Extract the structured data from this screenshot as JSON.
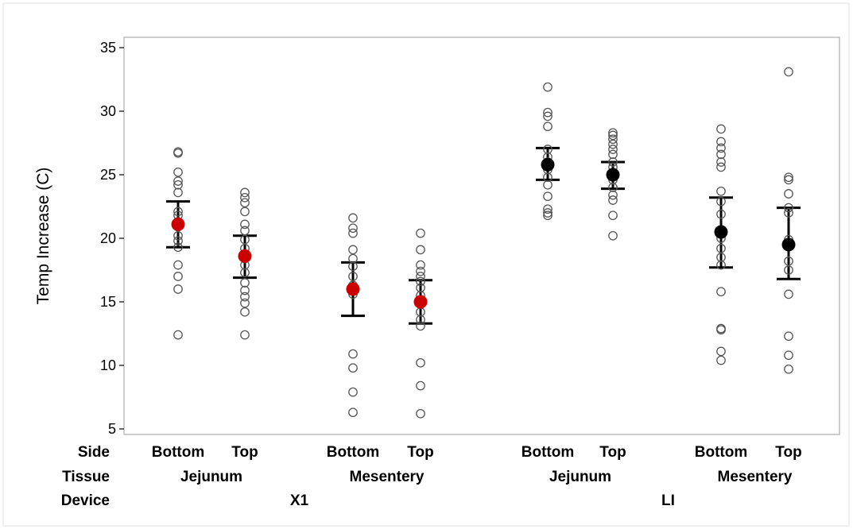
{
  "chart_data": {
    "type": "scatter",
    "ylabel": "Temp Increase (C)",
    "ylim": [
      5,
      35
    ],
    "yticks": [
      5,
      10,
      15,
      20,
      25,
      30,
      35
    ],
    "grid": false,
    "row_titles": {
      "side": "Side",
      "tissue": "Tissue",
      "device": "Device"
    },
    "devices": [
      "X1",
      "LI"
    ],
    "groups": [
      {
        "side": "Bottom",
        "tissue": "Jejunum",
        "device": "X1",
        "mean": 21.1,
        "ci": [
          19.3,
          22.9
        ],
        "mean_color": "#cc0000",
        "points": [
          26.8,
          26.7,
          25.2,
          24.5,
          24.2,
          23.6,
          22.1,
          21.8,
          21.3,
          20.9,
          20.2,
          19.8,
          19.3,
          17.9,
          17.0,
          16.0,
          12.4
        ]
      },
      {
        "side": "Top",
        "tissue": "Jejunum",
        "device": "X1",
        "mean": 18.6,
        "ci": [
          16.9,
          20.2
        ],
        "mean_color": "#cc0000",
        "points": [
          23.6,
          23.2,
          22.8,
          22.1,
          21.1,
          20.6,
          19.9,
          19.2,
          18.4,
          17.9,
          17.3,
          16.5,
          15.9,
          15.4,
          14.9,
          14.2,
          12.4
        ]
      },
      {
        "side": "Bottom",
        "tissue": "Mesentery",
        "device": "X1",
        "mean": 16.0,
        "ci": [
          13.9,
          18.1
        ],
        "mean_color": "#cc0000",
        "points": [
          21.6,
          20.8,
          20.4,
          19.1,
          18.4,
          17.8,
          17.0,
          16.3,
          15.6,
          10.9,
          9.8,
          7.9,
          6.3
        ]
      },
      {
        "side": "Top",
        "tissue": "Mesentery",
        "device": "X1",
        "mean": 15.0,
        "ci": [
          13.3,
          16.7
        ],
        "mean_color": "#cc0000",
        "points": [
          20.4,
          19.1,
          17.9,
          17.4,
          17.0,
          16.6,
          16.1,
          15.5,
          14.8,
          14.2,
          13.6,
          13.1,
          10.2,
          8.4,
          6.2
        ]
      },
      {
        "side": "Bottom",
        "tissue": "Jejunum",
        "device": "LI",
        "mean": 25.8,
        "ci": [
          24.6,
          27.1
        ],
        "mean_color": "#000000",
        "points": [
          31.9,
          29.9,
          29.6,
          28.8,
          27.0,
          26.4,
          26.0,
          25.4,
          24.8,
          24.2,
          23.3,
          22.3,
          22.0,
          21.8
        ]
      },
      {
        "side": "Top",
        "tissue": "Jejunum",
        "device": "LI",
        "mean": 25.0,
        "ci": [
          23.9,
          26.0
        ],
        "mean_color": "#000000",
        "points": [
          28.3,
          28.1,
          27.8,
          27.4,
          27.0,
          26.6,
          26.0,
          25.6,
          25.1,
          24.6,
          24.0,
          23.4,
          23.0,
          21.8,
          20.2
        ]
      },
      {
        "side": "Bottom",
        "tissue": "Mesentery",
        "device": "LI",
        "mean": 20.5,
        "ci": [
          17.7,
          23.2
        ],
        "mean_color": "#000000",
        "points": [
          28.6,
          27.6,
          27.1,
          26.6,
          26.0,
          25.6,
          23.7,
          22.9,
          21.9,
          20.6,
          20.0,
          19.2,
          18.5,
          17.9,
          15.8,
          12.9,
          12.8,
          11.1,
          10.4
        ]
      },
      {
        "side": "Top",
        "tissue": "Mesentery",
        "device": "LI",
        "mean": 19.5,
        "ci": [
          16.8,
          22.4
        ],
        "mean_color": "#000000",
        "points": [
          33.1,
          24.8,
          24.6,
          23.5,
          22.4,
          22.0,
          19.9,
          19.6,
          18.2,
          17.5,
          15.6,
          12.3,
          10.8,
          9.7
        ]
      }
    ]
  }
}
